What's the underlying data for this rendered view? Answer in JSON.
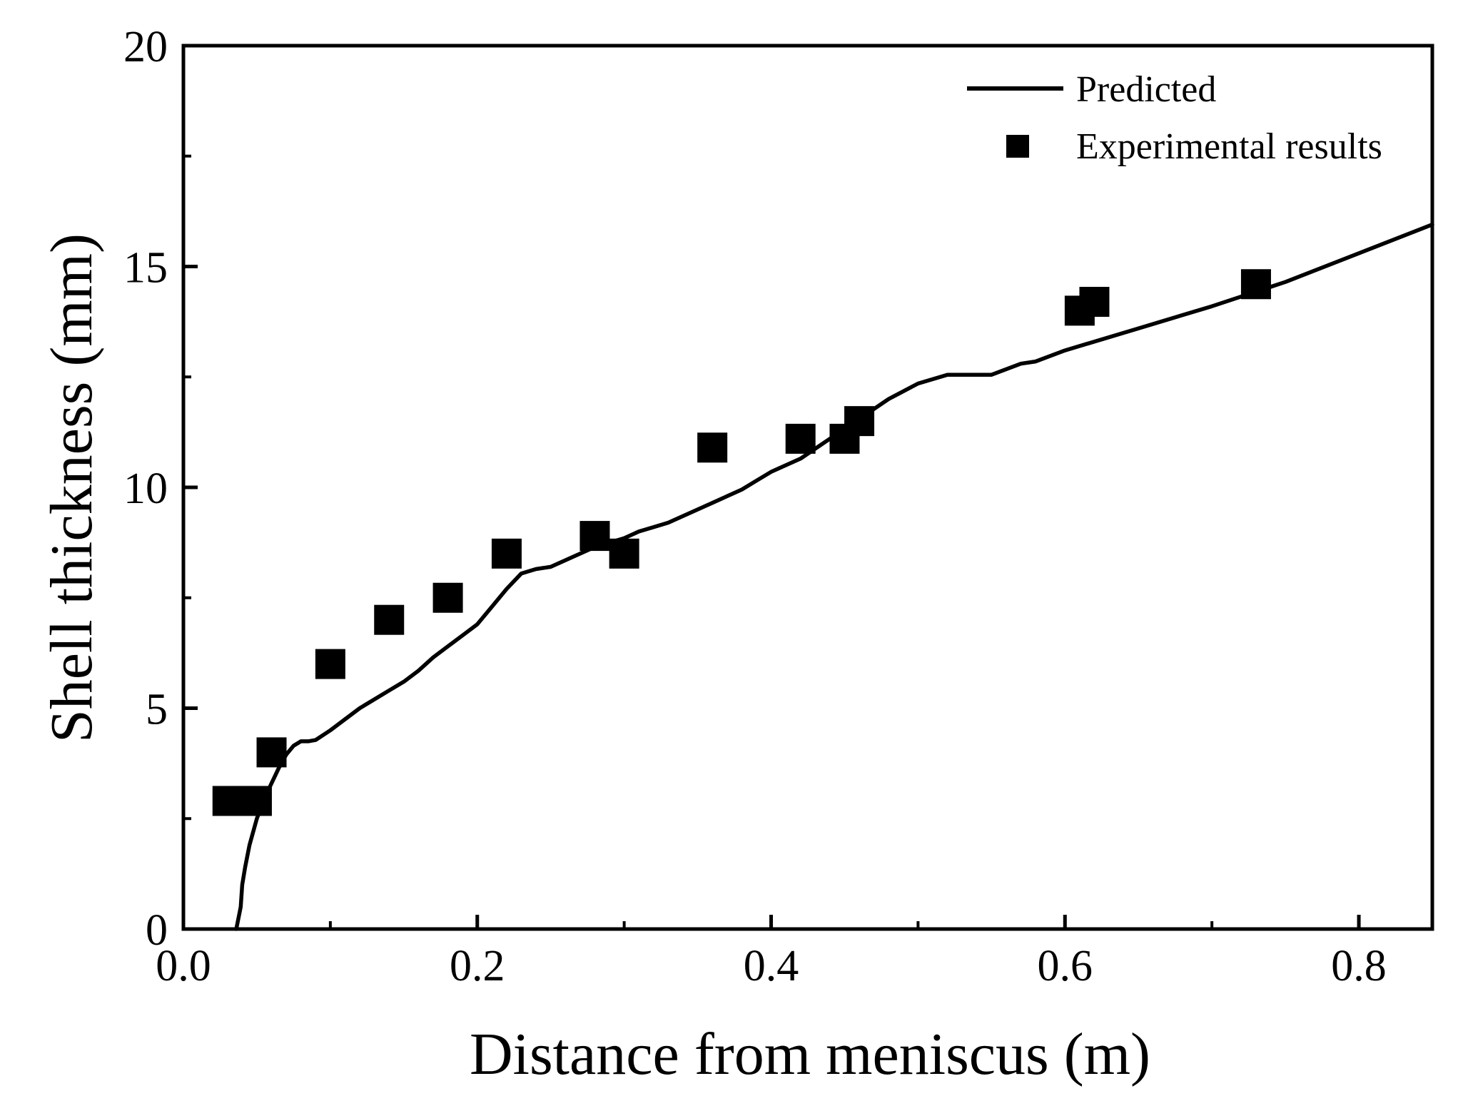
{
  "chart_data": {
    "type": "scatter",
    "title": "",
    "xlabel": "Distance from meniscus (m)",
    "ylabel": "Shell thickness (mm)",
    "xlim": [
      0.0,
      0.85
    ],
    "ylim": [
      0,
      20
    ],
    "xticks": [
      "0.0",
      "0.2",
      "0.4",
      "0.6",
      "0.8"
    ],
    "yticks": [
      "0",
      "5",
      "10",
      "15",
      "20"
    ],
    "xtick_values": [
      0.0,
      0.2,
      0.4,
      0.6,
      0.8
    ],
    "ytick_values": [
      0,
      5,
      10,
      15,
      20
    ],
    "grid": false,
    "legend_position": "top-right",
    "series": [
      {
        "name": "Predicted",
        "kind": "line",
        "x": [
          0.036,
          0.039,
          0.04,
          0.042,
          0.045,
          0.05,
          0.055,
          0.06,
          0.065,
          0.07,
          0.075,
          0.08,
          0.085,
          0.09,
          0.1,
          0.11,
          0.12,
          0.13,
          0.14,
          0.15,
          0.16,
          0.17,
          0.18,
          0.19,
          0.2,
          0.21,
          0.22,
          0.23,
          0.24,
          0.25,
          0.26,
          0.27,
          0.28,
          0.29,
          0.3,
          0.31,
          0.32,
          0.33,
          0.34,
          0.35,
          0.36,
          0.37,
          0.38,
          0.39,
          0.4,
          0.42,
          0.44,
          0.46,
          0.48,
          0.5,
          0.52,
          0.55,
          0.57,
          0.58,
          0.6,
          0.65,
          0.7,
          0.75,
          0.8,
          0.85
        ],
        "y": [
          0.0,
          0.5,
          1.0,
          1.4,
          1.9,
          2.5,
          2.95,
          3.3,
          3.65,
          3.95,
          4.15,
          4.25,
          4.25,
          4.28,
          4.5,
          4.75,
          5.0,
          5.2,
          5.4,
          5.6,
          5.85,
          6.15,
          6.4,
          6.65,
          6.9,
          7.3,
          7.7,
          8.05,
          8.15,
          8.2,
          8.35,
          8.5,
          8.65,
          8.75,
          8.85,
          9.0,
          9.1,
          9.2,
          9.35,
          9.5,
          9.65,
          9.8,
          9.95,
          10.15,
          10.35,
          10.65,
          11.1,
          11.55,
          12.0,
          12.35,
          12.55,
          12.55,
          12.8,
          12.85,
          13.1,
          13.6,
          14.1,
          14.65,
          15.3,
          15.95
        ]
      },
      {
        "name": "Experimental results",
        "kind": "scatter",
        "x": [
          0.03,
          0.04,
          0.05,
          0.06,
          0.1,
          0.14,
          0.18,
          0.22,
          0.28,
          0.3,
          0.36,
          0.42,
          0.45,
          0.46,
          0.61,
          0.62,
          0.73
        ],
        "y": [
          2.9,
          2.9,
          2.9,
          4.0,
          6.0,
          7.0,
          7.5,
          8.5,
          8.9,
          8.5,
          10.9,
          11.1,
          11.1,
          11.5,
          14.0,
          14.2,
          14.6
        ]
      }
    ]
  }
}
